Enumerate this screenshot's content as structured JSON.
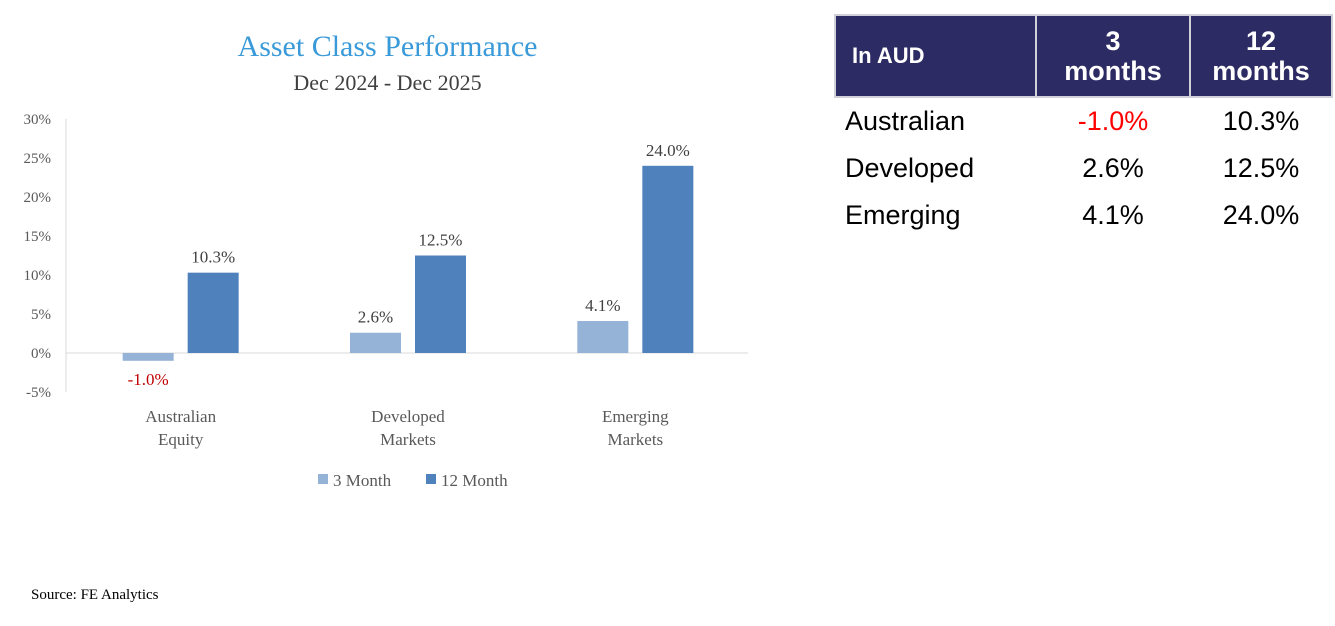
{
  "chart_data": {
    "type": "bar",
    "title": "Asset Class Performance",
    "subtitle": "Dec 2024 - Dec 2025",
    "categories": [
      [
        "Australian",
        "Equity"
      ],
      [
        "Developed",
        "Markets"
      ],
      [
        "Emerging",
        "Markets"
      ]
    ],
    "series": [
      {
        "name": "3 Month",
        "values": [
          -1.0,
          2.6,
          4.1
        ],
        "labels": [
          "-1.0%",
          "2.6%",
          "4.1%"
        ],
        "color": "#95b3d7"
      },
      {
        "name": "12 Month",
        "values": [
          10.3,
          12.5,
          24.0
        ],
        "labels": [
          "10.3%",
          "12.5%",
          "24.0%"
        ],
        "color": "#4f81bd"
      }
    ],
    "negative_label_color": "#c00000",
    "ylim": [
      -5,
      30
    ],
    "yticks": [
      30,
      25,
      20,
      15,
      10,
      5,
      0,
      -5
    ],
    "ytick_labels": [
      "30%",
      "25%",
      "20%",
      "15%",
      "10%",
      "5%",
      "0%",
      "-5%"
    ],
    "grid": false,
    "legend": "bottom"
  },
  "source": "Source: FE Analytics",
  "table": {
    "headers": [
      "In AUD",
      [
        "3",
        "months"
      ],
      [
        "12",
        "months"
      ]
    ],
    "header_bg": "#2d2b63",
    "rows": [
      {
        "label": "Australian",
        "m3": "-1.0%",
        "m12": "10.3%",
        "m3_negative": true
      },
      {
        "label": "Developed",
        "m3": "2.6%",
        "m12": "12.5%"
      },
      {
        "label": "Emerging",
        "m3": "4.1%",
        "m12": "24.0%"
      }
    ],
    "negative_color": "#ff0000"
  }
}
